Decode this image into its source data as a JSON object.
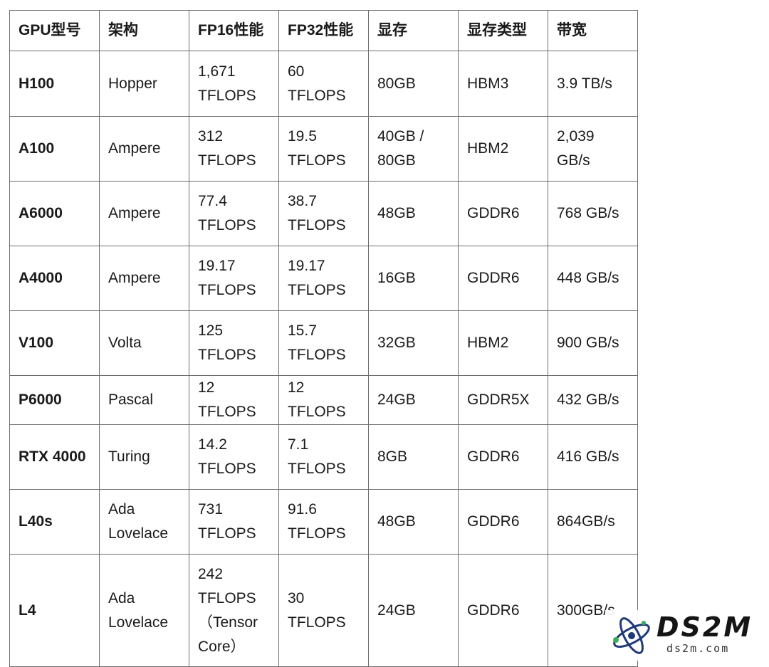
{
  "table": {
    "headers": [
      "GPU型号",
      "架构",
      "FP16性能",
      "FP32性能",
      "显存",
      "显存类型",
      "带宽"
    ],
    "rows": [
      [
        "H100",
        "Hopper",
        "1,671 TFLOPS",
        "60 TFLOPS",
        "80GB",
        "HBM3",
        "3.9 TB/s"
      ],
      [
        "A100",
        "Ampere",
        "312 TFLOPS",
        "19.5 TFLOPS",
        "40GB / 80GB",
        "HBM2",
        "2,039 GB/s"
      ],
      [
        "A6000",
        "Ampere",
        "77.4 TFLOPS",
        "38.7 TFLOPS",
        "48GB",
        "GDDR6",
        "768 GB/s"
      ],
      [
        "A4000",
        "Ampere",
        "19.17 TFLOPS",
        "19.17 TFLOPS",
        "16GB",
        "GDDR6",
        "448 GB/s"
      ],
      [
        "V100",
        "Volta",
        "125 TFLOPS",
        "15.7 TFLOPS",
        "32GB",
        "HBM2",
        "900 GB/s"
      ],
      [
        "P6000",
        "Pascal",
        "12 TFLOPS",
        "12 TFLOPS",
        "24GB",
        "GDDR5X",
        "432 GB/s"
      ],
      [
        "RTX 4000",
        "Turing",
        "14.2 TFLOPS",
        "7.1 TFLOPS",
        "8GB",
        "GDDR6",
        "416 GB/s"
      ],
      [
        "L40s",
        "Ada Lovelace",
        "731 TFLOPS",
        "91.6 TFLOPS",
        "48GB",
        "GDDR6",
        "864GB/s"
      ],
      [
        "L4",
        "Ada Lovelace",
        "242 TFLOPS （Tensor Core）",
        "30 TFLOPS",
        "24GB",
        "GDDR6",
        "300GB/s"
      ]
    ]
  },
  "watermark": {
    "title": "DS2M",
    "subtitle": "ds2m.com",
    "icon": "atom-logo-icon",
    "colors": {
      "orbit": "#1e3a78",
      "accent": "#3fae5a"
    }
  }
}
